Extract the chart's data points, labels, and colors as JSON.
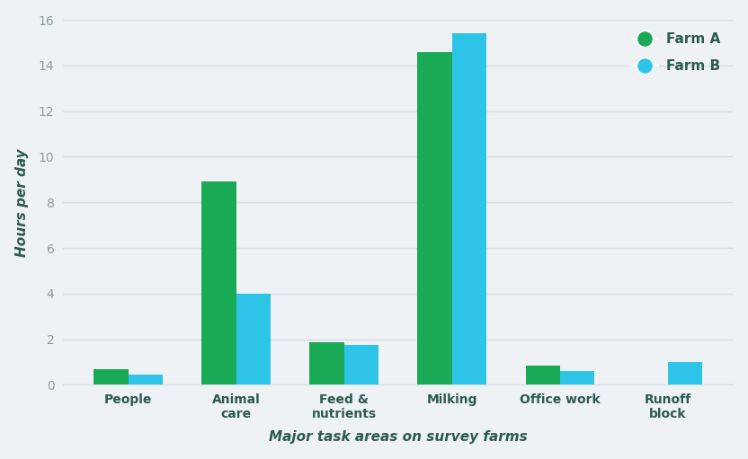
{
  "categories": [
    "People",
    "Animal\ncare",
    "Feed &\nnutrients",
    "Milking",
    "Office work",
    "Runoff\nblock"
  ],
  "farm_a": [
    0.7,
    8.9,
    1.85,
    14.6,
    0.85,
    0.0
  ],
  "farm_b": [
    0.45,
    4.0,
    1.75,
    15.4,
    0.6,
    1.0
  ],
  "farm_a_color": "#1aaa55",
  "farm_b_color": "#2ec4e8",
  "xlabel": "Major task areas on survey farms",
  "ylabel": "Hours per day",
  "ylim": [
    0,
    16
  ],
  "yticks": [
    0,
    2,
    4,
    6,
    8,
    10,
    12,
    14,
    16
  ],
  "legend_farm_a": "Farm A",
  "legend_farm_b": "Farm B",
  "background_color": "#eef2f5",
  "grid_color": "#d8dde2",
  "text_color": "#2d5a4e",
  "tick_color": "#8a9aa0",
  "bar_width": 0.32
}
